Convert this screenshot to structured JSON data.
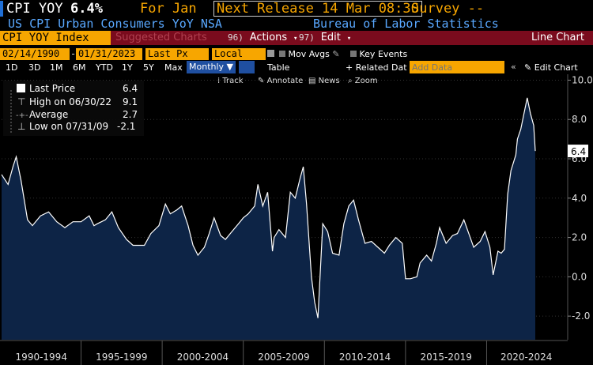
{
  "header": {
    "ticker": "CPI YOY",
    "value": "6.4%",
    "for_label": "For Jan",
    "next_release": "Next Release 14 Mar 08:30",
    "survey": "Survey --"
  },
  "subheader": {
    "description": "US CPI Urban Consumers YoY NSA",
    "source": "Bureau of Labor Statistics"
  },
  "toolbar": {
    "index_name": "CPI YOY Index",
    "suggested": "Suggested Charts",
    "actions_num": "96)",
    "actions": "Actions",
    "edit_num": "97)",
    "edit": "Edit",
    "chart_type": "Line Chart"
  },
  "controls": {
    "start_date": "02/14/1990",
    "end_date": "01/31/2023",
    "price_field": "Last Px",
    "currency": "Local CCY",
    "mov_avgs": "Mov Avgs",
    "key_events": "Key Events",
    "periods": [
      "1D",
      "3D",
      "1M",
      "6M",
      "YTD",
      "1Y",
      "5Y",
      "Max"
    ],
    "frequency": "Monthly",
    "table": "Table",
    "related_data": "+ Related Dat",
    "add_data_placeholder": "Add Data",
    "edit_chart": "Edit Chart"
  },
  "chart_tools": {
    "track": "Track",
    "annotate": "Annotate",
    "news": "News",
    "zoom": "Zoom"
  },
  "legend": {
    "last_price_label": "Last Price",
    "last_price_value": "6.4",
    "high_label": "High on 06/30/22",
    "high_value": "9.1",
    "average_label": "Average",
    "average_value": "2.7",
    "low_label": "Low on 07/31/09",
    "low_value": "-2.1"
  },
  "colors": {
    "amber": "#f7a600",
    "blue_text": "#59a8ff",
    "toolbar_red": "#7a0b1d",
    "area_fill": "#0d2446",
    "line": "#ffffff"
  },
  "chart_data": {
    "type": "area",
    "series": [
      {
        "name": "Last Price",
        "x": [
          1990.1,
          1990.5,
          1990.8,
          1991.0,
          1991.3,
          1991.7,
          1992.0,
          1992.5,
          1993.0,
          1993.5,
          1994.0,
          1994.5,
          1995.0,
          1995.5,
          1995.8,
          1996.0,
          1996.5,
          1996.9,
          1997.3,
          1997.8,
          1998.2,
          1998.5,
          1998.9,
          1999.3,
          1999.8,
          2000.2,
          2000.5,
          2000.9,
          2001.2,
          2001.6,
          2001.9,
          2002.2,
          2002.6,
          2002.9,
          2003.2,
          2003.6,
          2003.9,
          2004.3,
          2004.7,
          2005.0,
          2005.3,
          2005.7,
          2005.9,
          2006.2,
          2006.5,
          2006.8,
          2006.9,
          2007.2,
          2007.6,
          2007.9,
          2008.2,
          2008.5,
          2008.7,
          2008.9,
          2009.2,
          2009.4,
          2009.6,
          2009.9,
          2010.2,
          2010.5,
          2010.9,
          2011.2,
          2011.5,
          2011.8,
          2012.1,
          2012.5,
          2012.9,
          2013.3,
          2013.7,
          2014.0,
          2014.4,
          2014.8,
          2015.0,
          2015.3,
          2015.7,
          2015.9,
          2016.3,
          2016.6,
          2016.9,
          2017.1,
          2017.5,
          2017.9,
          2018.2,
          2018.6,
          2018.9,
          2019.2,
          2019.6,
          2019.9,
          2020.2,
          2020.4,
          2020.7,
          2020.9,
          2021.1,
          2021.3,
          2021.5,
          2021.8,
          2021.9,
          2022.1,
          2022.3,
          2022.5,
          2022.7,
          2022.9,
          2023.0
        ],
        "values": [
          5.2,
          4.7,
          5.6,
          6.1,
          4.9,
          2.9,
          2.6,
          3.1,
          3.3,
          2.8,
          2.5,
          2.8,
          2.8,
          3.1,
          2.6,
          2.7,
          2.9,
          3.3,
          2.5,
          1.9,
          1.6,
          1.6,
          1.6,
          2.2,
          2.6,
          3.7,
          3.2,
          3.4,
          3.6,
          2.6,
          1.6,
          1.1,
          1.5,
          2.2,
          3.0,
          2.1,
          1.9,
          2.3,
          2.7,
          3.0,
          3.2,
          3.6,
          4.7,
          3.6,
          4.3,
          1.3,
          2.0,
          2.4,
          2.0,
          4.3,
          4.0,
          5.0,
          5.6,
          3.7,
          0.0,
          -1.3,
          -2.1,
          2.7,
          2.3,
          1.2,
          1.1,
          2.7,
          3.6,
          3.9,
          2.9,
          1.7,
          1.8,
          1.5,
          1.2,
          1.6,
          2.0,
          1.7,
          -0.1,
          -0.1,
          0.0,
          0.7,
          1.1,
          0.8,
          1.7,
          2.5,
          1.7,
          2.1,
          2.2,
          2.9,
          2.2,
          1.5,
          1.8,
          2.3,
          1.5,
          0.1,
          1.3,
          1.2,
          1.4,
          4.2,
          5.4,
          6.2,
          7.0,
          7.5,
          8.3,
          9.1,
          8.3,
          7.7,
          6.4
        ]
      }
    ],
    "xlabels": [
      "1990-1994",
      "1995-1999",
      "2000-2004",
      "2005-2009",
      "2010-2014",
      "2015-2019",
      "2020-2024"
    ],
    "yticks": [
      -2.0,
      0.0,
      2.0,
      4.0,
      6.0,
      8.0,
      10.0
    ],
    "ylim": [
      -3.2,
      10.3
    ],
    "xlim": [
      1990.1,
      2024.9
    ],
    "last_value_label": "6.4"
  }
}
